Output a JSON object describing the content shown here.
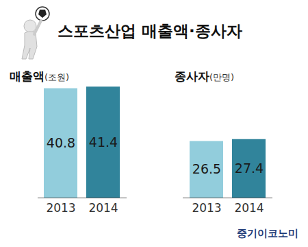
{
  "title": "스포츠산업 매출액·종사자",
  "source": "중기이코노미",
  "chart_data": [
    {
      "type": "bar",
      "title": "매출액",
      "subtitle": "(조원)",
      "categories": [
        "2013",
        "2014"
      ],
      "values": [
        40.8,
        41.4
      ],
      "colors": [
        "#92cddc",
        "#31849b"
      ],
      "ylim": [
        0,
        43
      ],
      "data_labels": true,
      "tick_labels": "x",
      "grid": false
    },
    {
      "type": "bar",
      "title": "종사자",
      "subtitle": "(만명)",
      "categories": [
        "2013",
        "2014"
      ],
      "values": [
        26.5,
        27.4
      ],
      "colors": [
        "#92cddc",
        "#31849b"
      ],
      "ylim": [
        0,
        54
      ],
      "data_labels": true,
      "tick_labels": "x",
      "grid": false
    }
  ]
}
